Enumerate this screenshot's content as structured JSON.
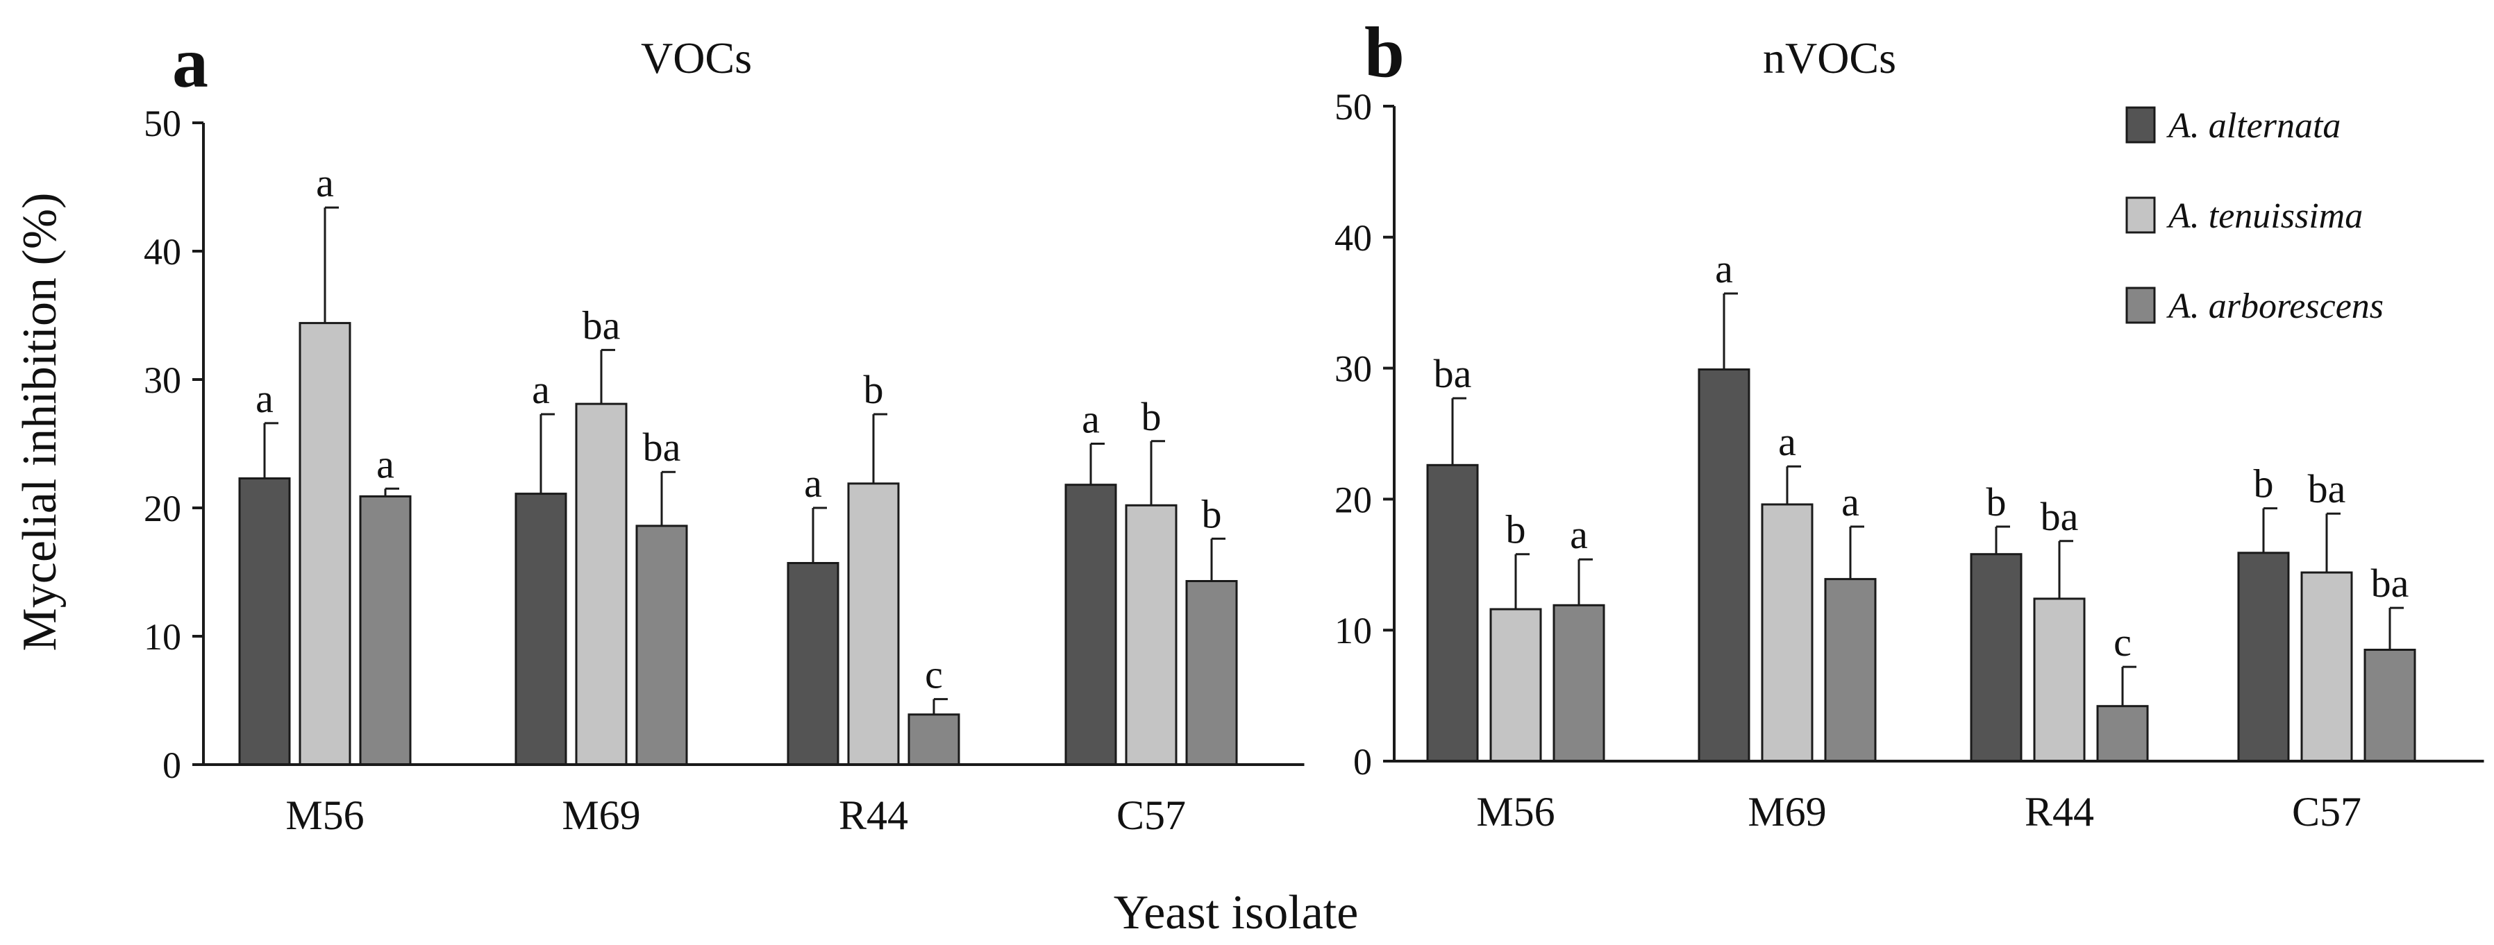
{
  "colors": {
    "A. alternata": "#545454",
    "A. tenuissima": "#c4c4c4",
    "A. arborescens": "#868686",
    "axis": "#1a1a1a"
  },
  "xlabel": "Yeast isolate",
  "ylabel": "Mycelial inhibition (%)",
  "legend": {
    "items": [
      "A. alternata",
      "A. tenuissima",
      "A. arborescens"
    ]
  },
  "chart_data": [
    {
      "type": "bar",
      "panel": "a",
      "title": "VOCs",
      "categories": [
        "M56",
        "M69",
        "R44",
        "C57"
      ],
      "ylim": [
        0,
        50
      ],
      "yticks": [
        0,
        10,
        20,
        30,
        40,
        50
      ],
      "xlabel": "Yeast isolate",
      "ylabel": "Mycelial inhibition (%)",
      "series": [
        {
          "name": "A. alternata",
          "values": [
            22.3,
            21.1,
            15.7,
            21.8
          ],
          "errors": [
            4.3,
            6.2,
            4.3,
            3.2
          ],
          "labels": [
            "a",
            "a",
            "a",
            "a"
          ]
        },
        {
          "name": "A. tenuissima",
          "values": [
            34.4,
            28.1,
            21.9,
            20.2
          ],
          "errors": [
            9.0,
            4.2,
            5.4,
            5.0
          ],
          "labels": [
            "a",
            "ba",
            "b",
            "b"
          ]
        },
        {
          "name": "A. arborescens",
          "values": [
            20.9,
            18.6,
            3.9,
            14.3
          ],
          "errors": [
            0.6,
            4.2,
            1.2,
            3.3
          ],
          "labels": [
            "a",
            "ba",
            "c",
            "b"
          ]
        }
      ]
    },
    {
      "type": "bar",
      "panel": "b",
      "title": "nVOCs",
      "categories": [
        "M56",
        "M69",
        "R44",
        "C57"
      ],
      "ylim": [
        0,
        50
      ],
      "yticks": [
        0,
        10,
        20,
        30,
        40,
        50
      ],
      "xlabel": "Yeast isolate",
      "ylabel": "",
      "series": [
        {
          "name": "A. alternata",
          "values": [
            22.6,
            29.9,
            15.8,
            15.9
          ],
          "errors": [
            5.1,
            5.8,
            2.1,
            3.4
          ],
          "labels": [
            "ba",
            "a",
            "b",
            "b"
          ]
        },
        {
          "name": "A. tenuissima",
          "values": [
            11.6,
            19.6,
            12.4,
            14.4
          ],
          "errors": [
            4.2,
            2.9,
            4.4,
            4.5
          ],
          "labels": [
            "b",
            "a",
            "ba",
            "ba"
          ]
        },
        {
          "name": "A. arborescens",
          "values": [
            11.9,
            13.9,
            4.2,
            8.5
          ],
          "errors": [
            3.5,
            4.0,
            3.0,
            3.2
          ],
          "labels": [
            "a",
            "a",
            "c",
            "ba"
          ]
        }
      ]
    }
  ]
}
